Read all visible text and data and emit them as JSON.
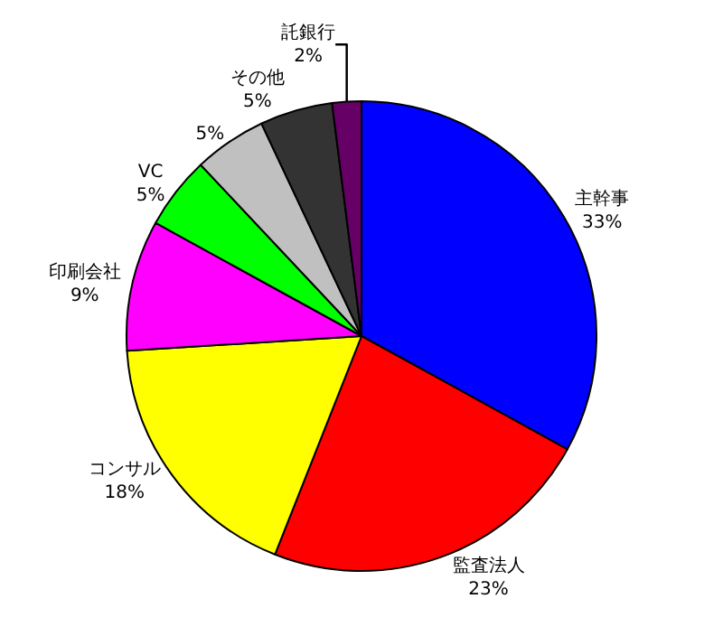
{
  "chart_data": {
    "type": "pie",
    "categories": [
      "主幹事",
      "監査法人",
      "コンサル",
      "印刷会社",
      "VC",
      null,
      "その他",
      "託銀行"
    ],
    "values": [
      33,
      23,
      18,
      9,
      5,
      5,
      5,
      2
    ],
    "value_labels": [
      "33%",
      "23%",
      "18%",
      "9%",
      "5%",
      "5%",
      "5%",
      "2%"
    ],
    "colors": [
      "#0000ff",
      "#ff0000",
      "#ffff00",
      "#ff00ff",
      "#00ff00",
      "#c0c0c0",
      "#333333",
      "#660066"
    ],
    "legend": false
  }
}
